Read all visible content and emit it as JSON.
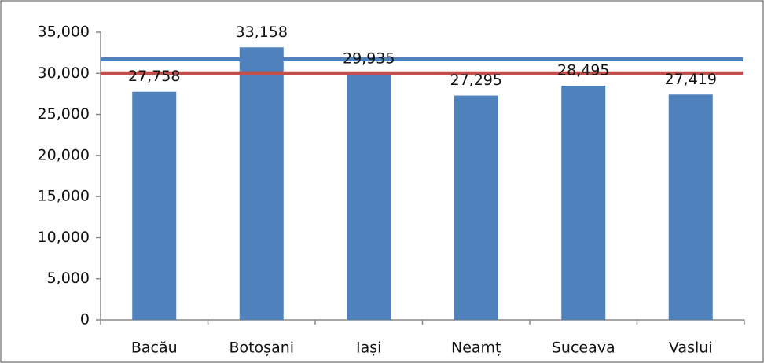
{
  "chart_data": {
    "type": "bar",
    "categories": [
      "Bacău",
      "Botoșani",
      "Iași",
      "Neamț",
      "Suceava",
      "Vaslui"
    ],
    "values": [
      27758,
      33158,
      29935,
      27295,
      28495,
      27419
    ],
    "value_labels": [
      "27,758",
      "33,158",
      "29,935",
      "27,295",
      "28,495",
      "27,419"
    ],
    "color": "#4f81bd",
    "ylim": [
      0,
      35000
    ],
    "yticks": [
      0,
      {
        "value": 5000,
        "label": "5,000"
      },
      {
        "value": 10000,
        "label": "10,000"
      },
      {
        "value": 15000,
        "label": "15,000"
      },
      {
        "value": 20000,
        "label": "20,000"
      },
      {
        "value": 25000,
        "label": "25,000"
      },
      {
        "value": 30000,
        "label": "30,000"
      },
      {
        "value": 35000,
        "label": "35,000"
      }
    ],
    "reference_lines": [
      {
        "value": 31700,
        "color": "#4f81bd"
      },
      {
        "value": 30000,
        "color": "#c0504d"
      }
    ],
    "grid": false
  }
}
